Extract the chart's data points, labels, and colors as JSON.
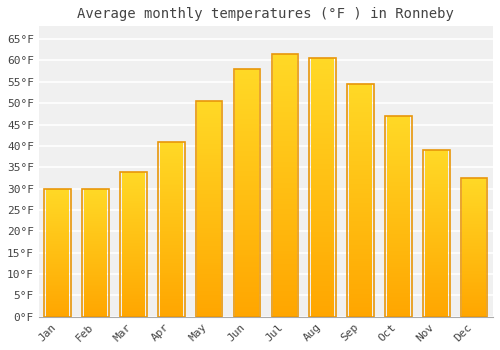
{
  "title": "Average monthly temperatures (°F ) in Ronneby",
  "months": [
    "Jan",
    "Feb",
    "Mar",
    "Apr",
    "May",
    "Jun",
    "Jul",
    "Aug",
    "Sep",
    "Oct",
    "Nov",
    "Dec"
  ],
  "values": [
    30,
    30,
    34,
    41,
    50.5,
    58,
    61.5,
    60.5,
    54.5,
    47,
    39,
    32.5
  ],
  "bar_color_face": "#FFC020",
  "bar_color_edge": "#E8960A",
  "background_color": "#FFFFFF",
  "plot_bg_color": "#F0F0F0",
  "grid_color": "#FFFFFF",
  "text_color": "#444444",
  "ylim": [
    0,
    68
  ],
  "yticks": [
    0,
    5,
    10,
    15,
    20,
    25,
    30,
    35,
    40,
    45,
    50,
    55,
    60,
    65
  ],
  "ytick_labels": [
    "0°F",
    "5°F",
    "10°F",
    "15°F",
    "20°F",
    "25°F",
    "30°F",
    "35°F",
    "40°F",
    "45°F",
    "50°F",
    "55°F",
    "60°F",
    "65°F"
  ],
  "title_fontsize": 10,
  "tick_fontsize": 8,
  "font_family": "monospace",
  "bar_width": 0.7
}
